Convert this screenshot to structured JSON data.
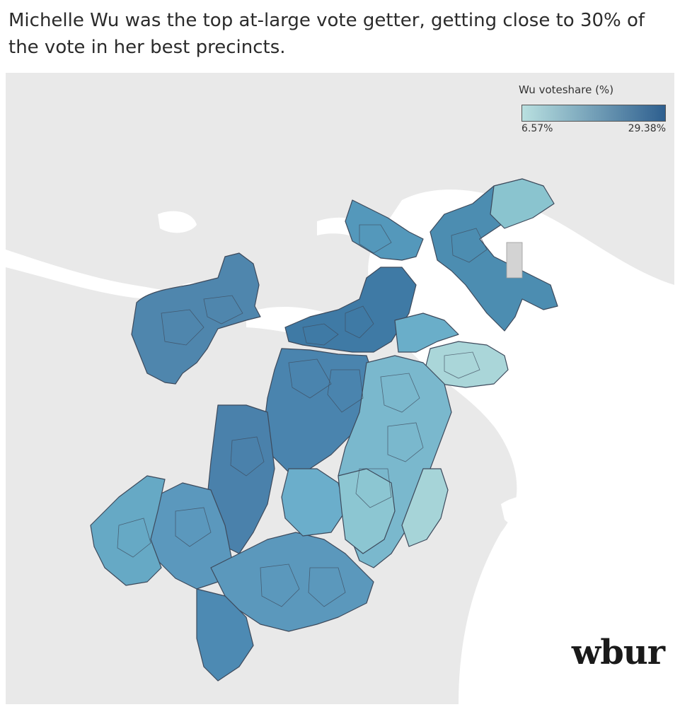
{
  "headline": "Michelle Wu was the top at-large vote getter, getting close to 30% of the vote in her best precincts.",
  "legend": {
    "title": "Wu voteshare (%)",
    "min_label": "6.57%",
    "max_label": "29.38%",
    "min_value": 6.57,
    "max_value": 29.38,
    "color_low": "#b9e0e0",
    "color_high": "#2e5f8f"
  },
  "logo_text": "wbur",
  "colors": {
    "land": "#e9e9e9",
    "water": "#ffffff",
    "precinct_border": "#3d4a5c"
  }
}
